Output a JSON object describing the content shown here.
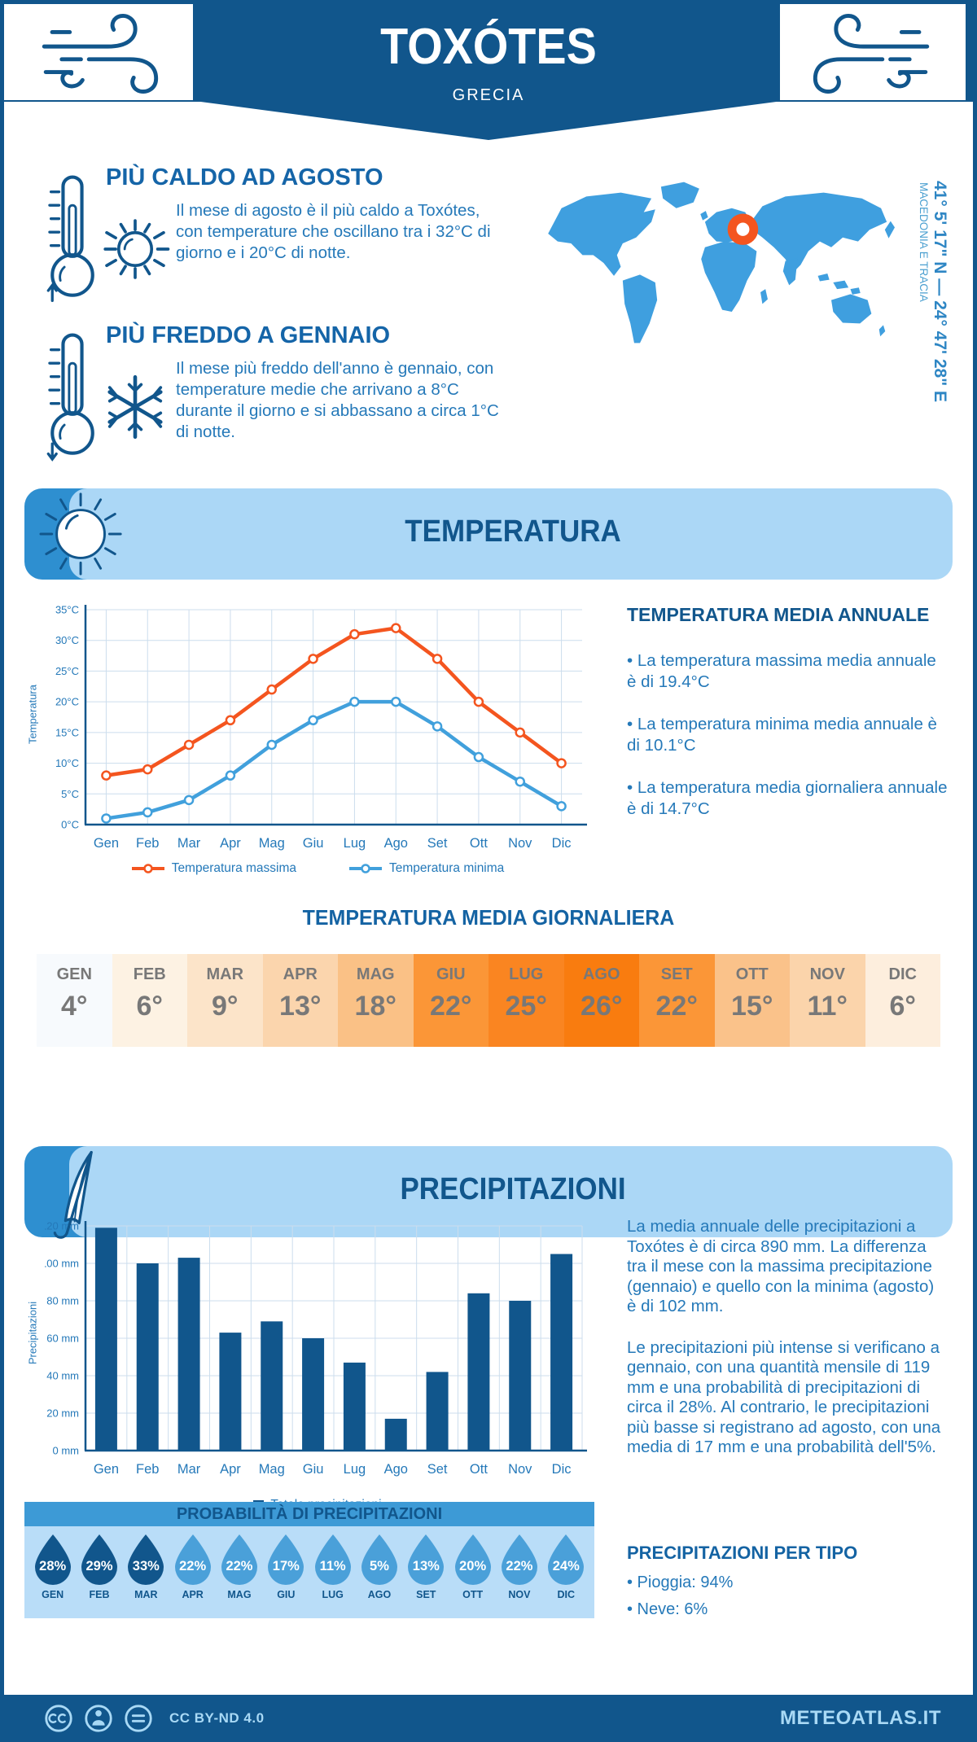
{
  "header": {
    "title": "TOXÓTES",
    "subtitle": "GRECIA",
    "coordinates": "41° 5' 17\" N — 24° 47' 28\" E",
    "region": "MACEDONIA E TRACIA"
  },
  "highlights": {
    "hot": {
      "title": "PIÙ CALDO AD AGOSTO",
      "text": "Il mese di agosto è il più caldo a Toxótes, con temperature che oscillano tra i 32°C di giorno e i 20°C di notte."
    },
    "cold": {
      "title": "PIÙ FREDDO A GENNAIO",
      "text": "Il mese più freddo dell'anno è gennaio, con temperature medie che arrivano a 8°C durante il giorno e si abbassano a circa 1°C di notte."
    }
  },
  "temperature": {
    "banner": "TEMPERATURA",
    "annual_title": "TEMPERATURA MEDIA ANNUALE",
    "annual_bullets": [
      "• La temperatura massima media annuale è di 19.4°C",
      "• La temperatura minima media annuale è di 10.1°C",
      "• La temperatura media giornaliera annuale è di 14.7°C"
    ],
    "daily_title": "TEMPERATURA MEDIA GIORNALIERA",
    "monthly": [
      {
        "month": "GEN",
        "value": "4°",
        "bg": "#f7fafd"
      },
      {
        "month": "FEB",
        "value": "6°",
        "bg": "#fdf2e3"
      },
      {
        "month": "MAR",
        "value": "9°",
        "bg": "#fce4c9"
      },
      {
        "month": "APR",
        "value": "13°",
        "bg": "#fbd5ad"
      },
      {
        "month": "MAG",
        "value": "18°",
        "bg": "#fac186"
      },
      {
        "month": "GIU",
        "value": "22°",
        "bg": "#fb9637"
      },
      {
        "month": "LUG",
        "value": "25°",
        "bg": "#fa8521"
      },
      {
        "month": "AGO",
        "value": "26°",
        "bg": "#f97c0f"
      },
      {
        "month": "SET",
        "value": "22°",
        "bg": "#fb9637"
      },
      {
        "month": "OTT",
        "value": "15°",
        "bg": "#fac28a"
      },
      {
        "month": "NOV",
        "value": "11°",
        "bg": "#fbd4ab"
      },
      {
        "month": "DIC",
        "value": "6°",
        "bg": "#fdeedd"
      }
    ]
  },
  "precipitation": {
    "banner": "PRECIPITAZIONI",
    "paragraphs": [
      "La media annuale delle precipitazioni a Toxótes è di circa 890 mm. La differenza tra il mese con la massima precipitazione (gennaio) e quello con la minima (agosto) è di 102 mm.",
      "Le precipitazioni più intense si verificano a gennaio, con una quantità mensile di 119 mm e una probabilità di precipitazioni di circa il 28%. Al contrario, le precipitazioni più basse si registrano ad agosto, con una media di 17 mm e una probabilità dell'5%."
    ],
    "probability_title": "PROBABILITÀ DI PRECIPITAZIONI",
    "probability": [
      {
        "month": "GEN",
        "value": "28%",
        "dark": true
      },
      {
        "month": "FEB",
        "value": "29%",
        "dark": true
      },
      {
        "month": "MAR",
        "value": "33%",
        "dark": true
      },
      {
        "month": "APR",
        "value": "22%",
        "dark": false
      },
      {
        "month": "MAG",
        "value": "22%",
        "dark": false
      },
      {
        "month": "GIU",
        "value": "17%",
        "dark": false
      },
      {
        "month": "LUG",
        "value": "11%",
        "dark": false
      },
      {
        "month": "AGO",
        "value": "5%",
        "dark": false
      },
      {
        "month": "SET",
        "value": "13%",
        "dark": false
      },
      {
        "month": "OTT",
        "value": "20%",
        "dark": false
      },
      {
        "month": "NOV",
        "value": "22%",
        "dark": false
      },
      {
        "month": "DIC",
        "value": "24%",
        "dark": false
      }
    ],
    "type_title": "PRECIPITAZIONI PER TIPO",
    "type_bullets": [
      "• Pioggia: 94%",
      "• Neve: 6%"
    ]
  },
  "chart_data": [
    {
      "type": "line",
      "x": [
        "Gen",
        "Feb",
        "Mar",
        "Apr",
        "Mag",
        "Giu",
        "Lug",
        "Ago",
        "Set",
        "Ott",
        "Nov",
        "Dic"
      ],
      "ylabel": "Temperatura",
      "ylim": [
        0,
        35
      ],
      "ytick_step": 5,
      "ytick_suffix": "°C",
      "grid": true,
      "legend_position": "bottom",
      "series": [
        {
          "name": "Temperatura massima",
          "color": "#f4551f",
          "values": [
            8,
            9,
            13,
            17,
            22,
            27,
            31,
            32,
            27,
            20,
            15,
            10
          ]
        },
        {
          "name": "Temperatura minima",
          "color": "#41a0dc",
          "values": [
            1,
            2,
            4,
            8,
            13,
            17,
            20,
            20,
            16,
            11,
            7,
            3
          ]
        }
      ]
    },
    {
      "type": "bar",
      "categories": [
        "Gen",
        "Feb",
        "Mar",
        "Apr",
        "Mag",
        "Giu",
        "Lug",
        "Ago",
        "Set",
        "Ott",
        "Nov",
        "Dic"
      ],
      "values": [
        119,
        100,
        103,
        63,
        69,
        60,
        47,
        17,
        42,
        84,
        80,
        105
      ],
      "ylabel": "Precipitazioni",
      "ylim": [
        0,
        120
      ],
      "ytick_step": 20,
      "ytick_suffix": " mm",
      "grid": true,
      "legend": "Totale precipitazioni",
      "bar_color": "#11568c"
    }
  ],
  "footer": {
    "license": "CC BY-ND 4.0",
    "brand": "METEOATLAS.IT"
  },
  "colors": {
    "blue_dark": "#11568c",
    "blue_heading": "#1565a8",
    "blue_text": "#2579b9",
    "blue_medium": "#3d9ad6",
    "blue_light_banner": "#abd7f6",
    "blue_prob_bg": "#b9ddf8",
    "map_blue": "#3f9fdf",
    "orange": "#f4551f",
    "drop_dark": "#11568c",
    "drop_light": "#4aa0d9",
    "grid_line": "#ccdded",
    "table_text": "#787878"
  }
}
